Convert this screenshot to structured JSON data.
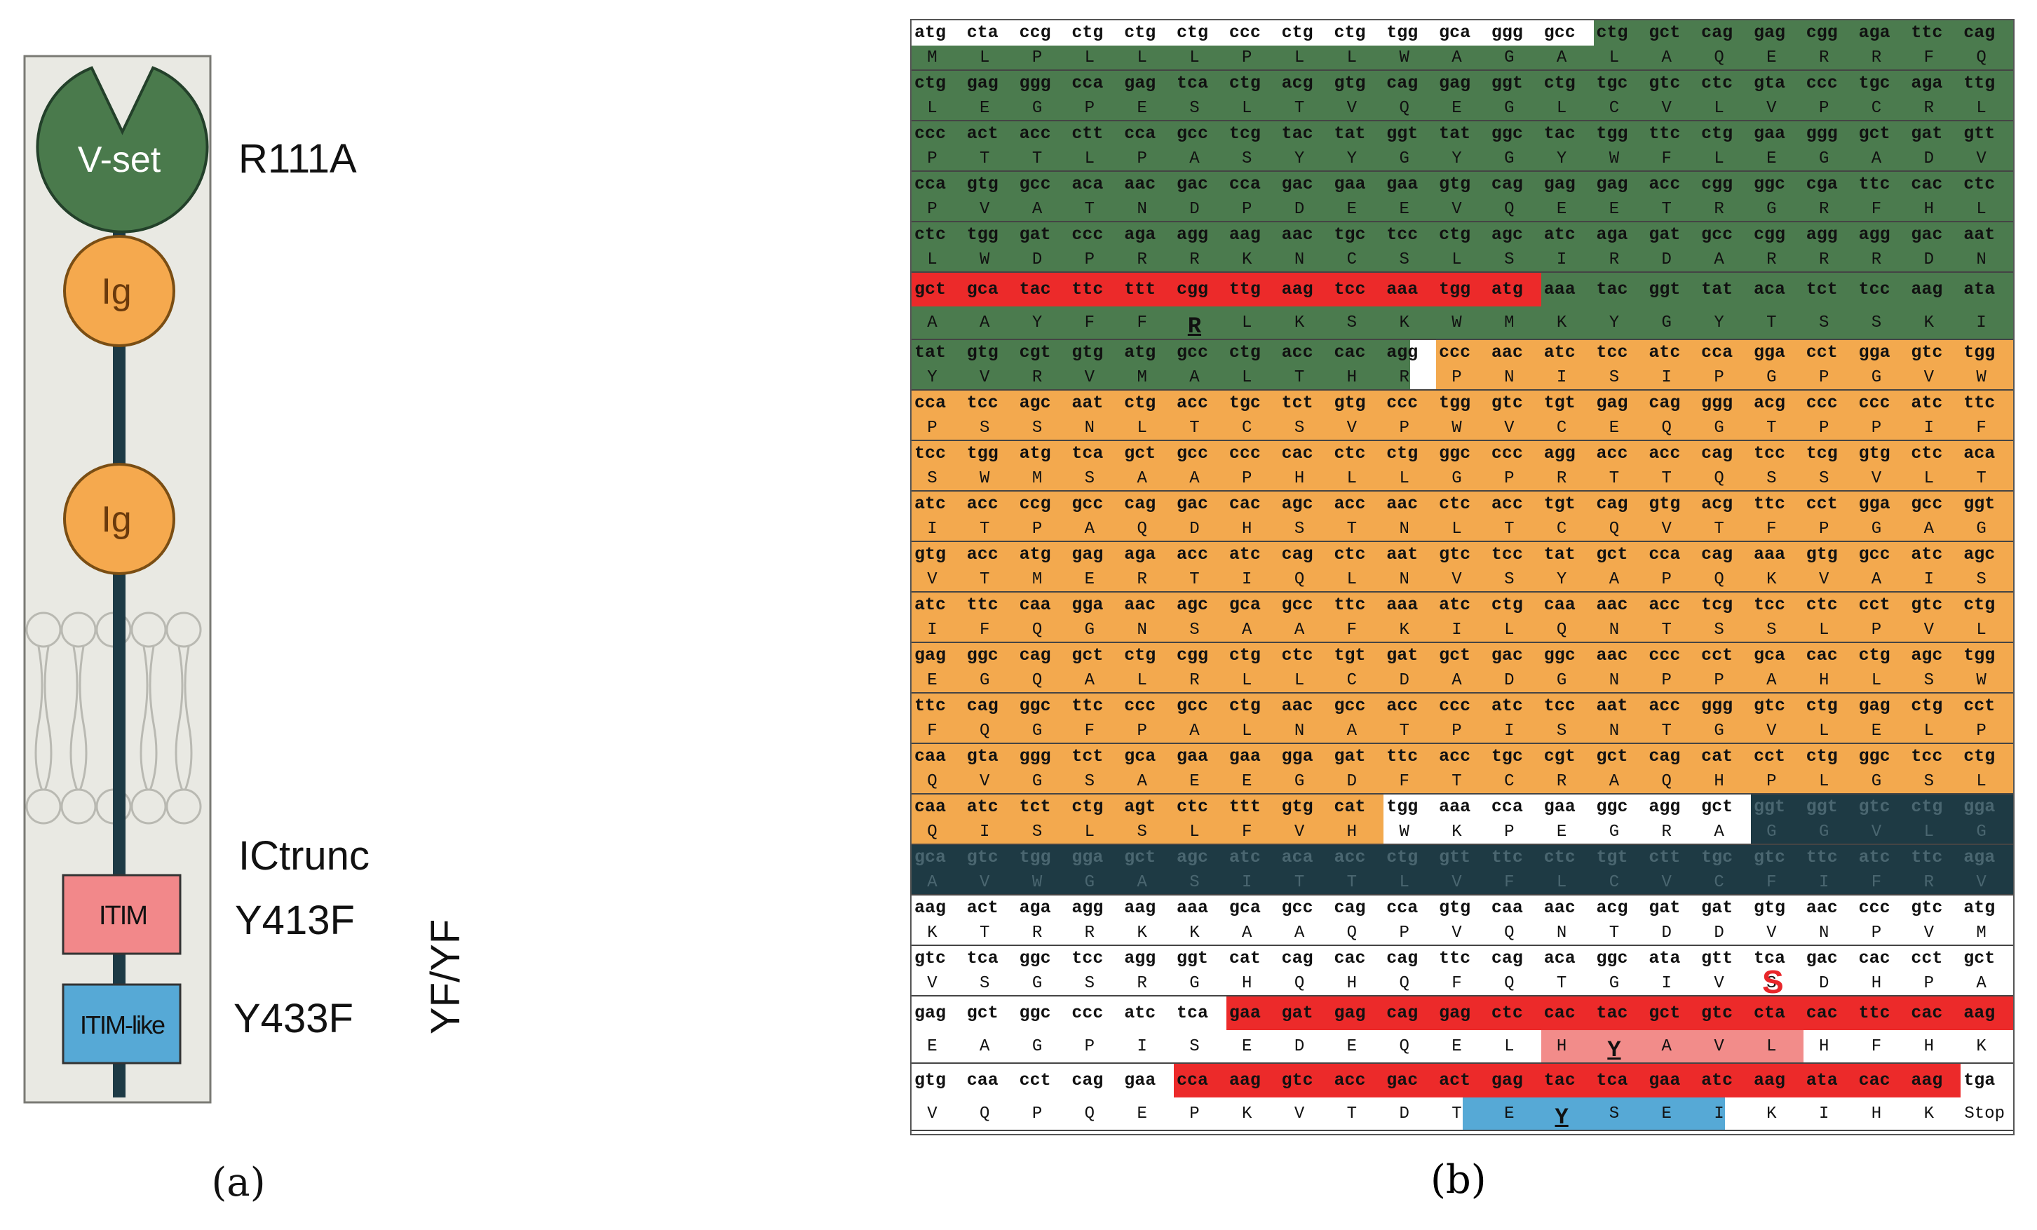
{
  "panel_a": {
    "caption": "(a)",
    "domains": {
      "vset": "V-set",
      "ig1": "Ig",
      "ig2": "Ig",
      "itim": "ITIM",
      "itim_like": "ITIM-like"
    },
    "labels": {
      "vset_mutation": "R111A",
      "ictrunc": "ICtrunc",
      "itim_mutation": "Y413F",
      "itim_like_mutation": "Y433F",
      "double_mutation": "YF/YF"
    },
    "colors": {
      "vset": "#4a7a4c",
      "ig": "#f5a94e",
      "stem": "#1d3a45",
      "itim": "#f2888a",
      "itim_like": "#56a9d6",
      "box_bg": "#e9e9e3"
    }
  },
  "panel_b": {
    "caption": "(b)",
    "colors": {
      "green": "#4b7b4e",
      "orange": "#f3a94e",
      "dark": "#1e3a44",
      "red": "#ec2a2a",
      "pink": "#f28c8a",
      "blue": "#56a9d6",
      "white": "#ffffff",
      "mut_red": "#e8262a"
    },
    "rows": [
      {
        "nt": [
          "atg",
          "cta",
          "ccg",
          "ctg",
          "ctg",
          "ctg",
          "ccc",
          "ctg",
          "ctg",
          "tgg",
          "gca",
          "ggg",
          "gcc",
          "ctg",
          "gct",
          "cag",
          "gag",
          "cgg",
          "aga",
          "ttc",
          "cag"
        ],
        "aa": [
          "M",
          "L",
          "P",
          "L",
          "L",
          "L",
          "P",
          "L",
          "L",
          "W",
          "A",
          "G",
          "A",
          "L",
          "A",
          "Q",
          "E",
          "R",
          "R",
          "F",
          "Q"
        ]
      },
      {
        "nt": [
          "ctg",
          "gag",
          "ggg",
          "cca",
          "gag",
          "tca",
          "ctg",
          "acg",
          "gtg",
          "cag",
          "gag",
          "ggt",
          "ctg",
          "tgc",
          "gtc",
          "ctc",
          "gta",
          "ccc",
          "tgc",
          "aga",
          "ttg"
        ],
        "aa": [
          "L",
          "E",
          "G",
          "P",
          "E",
          "S",
          "L",
          "T",
          "V",
          "Q",
          "E",
          "G",
          "L",
          "C",
          "V",
          "L",
          "V",
          "P",
          "C",
          "R",
          "L"
        ]
      },
      {
        "nt": [
          "ccc",
          "act",
          "acc",
          "ctt",
          "cca",
          "gcc",
          "tcg",
          "tac",
          "tat",
          "ggt",
          "tat",
          "ggc",
          "tac",
          "tgg",
          "ttc",
          "ctg",
          "gaa",
          "ggg",
          "gct",
          "gat",
          "gtt"
        ],
        "aa": [
          "P",
          "T",
          "T",
          "L",
          "P",
          "A",
          "S",
          "Y",
          "Y",
          "G",
          "Y",
          "G",
          "Y",
          "W",
          "F",
          "L",
          "E",
          "G",
          "A",
          "D",
          "V"
        ]
      },
      {
        "nt": [
          "cca",
          "gtg",
          "gcc",
          "aca",
          "aac",
          "gac",
          "cca",
          "gac",
          "gaa",
          "gaa",
          "gtg",
          "cag",
          "gag",
          "gag",
          "acc",
          "cgg",
          "ggc",
          "cga",
          "ttc",
          "cac",
          "ctc"
        ],
        "aa": [
          "P",
          "V",
          "A",
          "T",
          "N",
          "D",
          "P",
          "D",
          "E",
          "E",
          "V",
          "Q",
          "E",
          "E",
          "T",
          "R",
          "G",
          "R",
          "F",
          "H",
          "L"
        ]
      },
      {
        "nt": [
          "ctc",
          "tgg",
          "gat",
          "ccc",
          "aga",
          "agg",
          "aag",
          "aac",
          "tgc",
          "tcc",
          "ctg",
          "agc",
          "atc",
          "aga",
          "gat",
          "gcc",
          "cgg",
          "agg",
          "agg",
          "gac",
          "aat"
        ],
        "aa": [
          "L",
          "W",
          "D",
          "P",
          "R",
          "R",
          "K",
          "N",
          "C",
          "S",
          "L",
          "S",
          "I",
          "R",
          "D",
          "A",
          "R",
          "R",
          "R",
          "D",
          "N"
        ]
      },
      {
        "nt": [
          "gct",
          "gca",
          "tac",
          "ttc",
          "ttt",
          "cgg",
          "ttg",
          "aag",
          "tcc",
          "aaa",
          "tgg",
          "atg",
          "aaa",
          "tac",
          "ggt",
          "tat",
          "aca",
          "tct",
          "tcc",
          "aag",
          "ata"
        ],
        "aa": [
          "A",
          "A",
          "Y",
          "F",
          "F",
          "R",
          "L",
          "K",
          "S",
          "K",
          "W",
          "M",
          "K",
          "Y",
          "G",
          "Y",
          "T",
          "S",
          "S",
          "K",
          "I"
        ]
      },
      {
        "nt": [
          "tat",
          "gtg",
          "cgt",
          "gtg",
          "atg",
          "gcc",
          "ctg",
          "acc",
          "cac",
          "agg",
          "ccc",
          "aac",
          "atc",
          "tcc",
          "atc",
          "cca",
          "gga",
          "cct",
          "gga",
          "gtc",
          "tgg"
        ],
        "aa": [
          "Y",
          "V",
          "R",
          "V",
          "M",
          "A",
          "L",
          "T",
          "H",
          "R",
          "P",
          "N",
          "I",
          "S",
          "I",
          "P",
          "G",
          "P",
          "G",
          "V",
          "W"
        ]
      },
      {
        "nt": [
          "cca",
          "tcc",
          "agc",
          "aat",
          "ctg",
          "acc",
          "tgc",
          "tct",
          "gtg",
          "ccc",
          "tgg",
          "gtc",
          "tgt",
          "gag",
          "cag",
          "ggg",
          "acg",
          "ccc",
          "ccc",
          "atc",
          "ttc"
        ],
        "aa": [
          "P",
          "S",
          "S",
          "N",
          "L",
          "T",
          "C",
          "S",
          "V",
          "P",
          "W",
          "V",
          "C",
          "E",
          "Q",
          "G",
          "T",
          "P",
          "P",
          "I",
          "F"
        ]
      },
      {
        "nt": [
          "tcc",
          "tgg",
          "atg",
          "tca",
          "gct",
          "gcc",
          "ccc",
          "cac",
          "ctc",
          "ctg",
          "ggc",
          "ccc",
          "agg",
          "acc",
          "acc",
          "cag",
          "tcc",
          "tcg",
          "gtg",
          "ctc",
          "aca"
        ],
        "aa": [
          "S",
          "W",
          "M",
          "S",
          "A",
          "A",
          "P",
          "H",
          "L",
          "L",
          "G",
          "P",
          "R",
          "T",
          "T",
          "Q",
          "S",
          "S",
          "V",
          "L",
          "T"
        ]
      },
      {
        "nt": [
          "atc",
          "acc",
          "ccg",
          "gcc",
          "cag",
          "gac",
          "cac",
          "agc",
          "acc",
          "aac",
          "ctc",
          "acc",
          "tgt",
          "cag",
          "gtg",
          "acg",
          "ttc",
          "cct",
          "gga",
          "gcc",
          "ggt"
        ],
        "aa": [
          "I",
          "T",
          "P",
          "A",
          "Q",
          "D",
          "H",
          "S",
          "T",
          "N",
          "L",
          "T",
          "C",
          "Q",
          "V",
          "T",
          "F",
          "P",
          "G",
          "A",
          "G"
        ]
      },
      {
        "nt": [
          "gtg",
          "acc",
          "atg",
          "gag",
          "aga",
          "acc",
          "atc",
          "cag",
          "ctc",
          "aat",
          "gtc",
          "tcc",
          "tat",
          "gct",
          "cca",
          "cag",
          "aaa",
          "gtg",
          "gcc",
          "atc",
          "agc"
        ],
        "aa": [
          "V",
          "T",
          "M",
          "E",
          "R",
          "T",
          "I",
          "Q",
          "L",
          "N",
          "V",
          "S",
          "Y",
          "A",
          "P",
          "Q",
          "K",
          "V",
          "A",
          "I",
          "S"
        ]
      },
      {
        "nt": [
          "atc",
          "ttc",
          "caa",
          "gga",
          "aac",
          "agc",
          "gca",
          "gcc",
          "ttc",
          "aaa",
          "atc",
          "ctg",
          "caa",
          "aac",
          "acc",
          "tcg",
          "tcc",
          "ctc",
          "cct",
          "gtc",
          "ctg"
        ],
        "aa": [
          "I",
          "F",
          "Q",
          "G",
          "N",
          "S",
          "A",
          "A",
          "F",
          "K",
          "I",
          "L",
          "Q",
          "N",
          "T",
          "S",
          "S",
          "L",
          "P",
          "V",
          "L"
        ]
      },
      {
        "nt": [
          "gag",
          "ggc",
          "cag",
          "gct",
          "ctg",
          "cgg",
          "ctg",
          "ctc",
          "tgt",
          "gat",
          "gct",
          "gac",
          "ggc",
          "aac",
          "ccc",
          "cct",
          "gca",
          "cac",
          "ctg",
          "agc",
          "tgg"
        ],
        "aa": [
          "E",
          "G",
          "Q",
          "A",
          "L",
          "R",
          "L",
          "L",
          "C",
          "D",
          "A",
          "D",
          "G",
          "N",
          "P",
          "P",
          "A",
          "H",
          "L",
          "S",
          "W"
        ]
      },
      {
        "nt": [
          "ttc",
          "cag",
          "ggc",
          "ttc",
          "ccc",
          "gcc",
          "ctg",
          "aac",
          "gcc",
          "acc",
          "ccc",
          "atc",
          "tcc",
          "aat",
          "acc",
          "ggg",
          "gtc",
          "ctg",
          "gag",
          "ctg",
          "cct"
        ],
        "aa": [
          "F",
          "Q",
          "G",
          "F",
          "P",
          "A",
          "L",
          "N",
          "A",
          "T",
          "P",
          "I",
          "S",
          "N",
          "T",
          "G",
          "V",
          "L",
          "E",
          "L",
          "P"
        ]
      },
      {
        "nt": [
          "caa",
          "gta",
          "ggg",
          "tct",
          "gca",
          "gaa",
          "gaa",
          "gga",
          "gat",
          "ttc",
          "acc",
          "tgc",
          "cgt",
          "gct",
          "cag",
          "cat",
          "cct",
          "ctg",
          "ggc",
          "tcc",
          "ctg"
        ],
        "aa": [
          "Q",
          "V",
          "G",
          "S",
          "A",
          "E",
          "E",
          "G",
          "D",
          "F",
          "T",
          "C",
          "R",
          "A",
          "Q",
          "H",
          "P",
          "L",
          "G",
          "S",
          "L"
        ]
      },
      {
        "nt": [
          "caa",
          "atc",
          "tct",
          "ctg",
          "agt",
          "ctc",
          "ttt",
          "gtg",
          "cat",
          "tgg",
          "aaa",
          "cca",
          "gaa",
          "ggc",
          "agg",
          "gct",
          "ggt",
          "ggt",
          "gtc",
          "ctg",
          "gga"
        ],
        "aa": [
          "Q",
          "I",
          "S",
          "L",
          "S",
          "L",
          "F",
          "V",
          "H",
          "W",
          "K",
          "P",
          "E",
          "G",
          "R",
          "A",
          "G",
          "G",
          "V",
          "L",
          "G"
        ]
      },
      {
        "nt": [
          "gca",
          "gtc",
          "tgg",
          "gga",
          "gct",
          "agc",
          "atc",
          "aca",
          "acc",
          "ctg",
          "gtt",
          "ttc",
          "ctc",
          "tgt",
          "ctt",
          "tgc",
          "gtc",
          "ttc",
          "atc",
          "ttc",
          "aga"
        ],
        "aa": [
          "A",
          "V",
          "W",
          "G",
          "A",
          "S",
          "I",
          "T",
          "T",
          "L",
          "V",
          "F",
          "L",
          "C",
          "V",
          "C",
          "F",
          "I",
          "F",
          "R",
          "V"
        ]
      },
      {
        "nt": [
          "aag",
          "act",
          "aga",
          "agg",
          "aag",
          "aaa",
          "gca",
          "gcc",
          "cag",
          "cca",
          "gtg",
          "caa",
          "aac",
          "acg",
          "gat",
          "gat",
          "gtg",
          "aac",
          "ccc",
          "gtc",
          "atg"
        ],
        "aa": [
          "K",
          "T",
          "R",
          "R",
          "K",
          "K",
          "A",
          "A",
          "Q",
          "P",
          "V",
          "Q",
          "N",
          "T",
          "D",
          "D",
          "V",
          "N",
          "P",
          "V",
          "M"
        ]
      },
      {
        "nt": [
          "gtc",
          "tca",
          "ggc",
          "tcc",
          "agg",
          "ggt",
          "cat",
          "cag",
          "cac",
          "cag",
          "ttc",
          "cag",
          "aca",
          "ggc",
          "ata",
          "gtt",
          "tca",
          "gac",
          "cac",
          "cct",
          "gct"
        ],
        "aa": [
          "V",
          "S",
          "G",
          "S",
          "R",
          "G",
          "H",
          "Q",
          "H",
          "Q",
          "F",
          "Q",
          "T",
          "G",
          "I",
          "V",
          "S",
          "D",
          "H",
          "P",
          "A"
        ]
      },
      {
        "nt": [
          "gag",
          "gct",
          "ggc",
          "ccc",
          "atc",
          "tca",
          "gaa",
          "gat",
          "gag",
          "cag",
          "gag",
          "ctc",
          "cac",
          "tac",
          "gct",
          "gtc",
          "cta",
          "cac",
          "ttc",
          "cac",
          "aag"
        ],
        "aa": [
          "E",
          "A",
          "G",
          "P",
          "I",
          "S",
          "E",
          "D",
          "E",
          "Q",
          "E",
          "L",
          "H",
          "Y",
          "A",
          "V",
          "L",
          "H",
          "F",
          "H",
          "K"
        ]
      },
      {
        "nt": [
          "gtg",
          "caa",
          "cct",
          "cag",
          "gaa",
          "cca",
          "aag",
          "gtc",
          "acc",
          "gac",
          "act",
          "gag",
          "tac",
          "tca",
          "gaa",
          "atc",
          "aag",
          "ata",
          "cac",
          "aag",
          "tga"
        ],
        "aa": [
          "V",
          "Q",
          "P",
          "Q",
          "E",
          "P",
          "K",
          "V",
          "T",
          "D",
          "T",
          "E",
          "Y",
          "S",
          "E",
          "I",
          "K",
          "I",
          "H",
          "K",
          "Stop"
        ]
      }
    ],
    "mutation_marks": {
      "r111": "R",
      "s_site": "S",
      "y413": "Y",
      "y433": "Y"
    }
  }
}
